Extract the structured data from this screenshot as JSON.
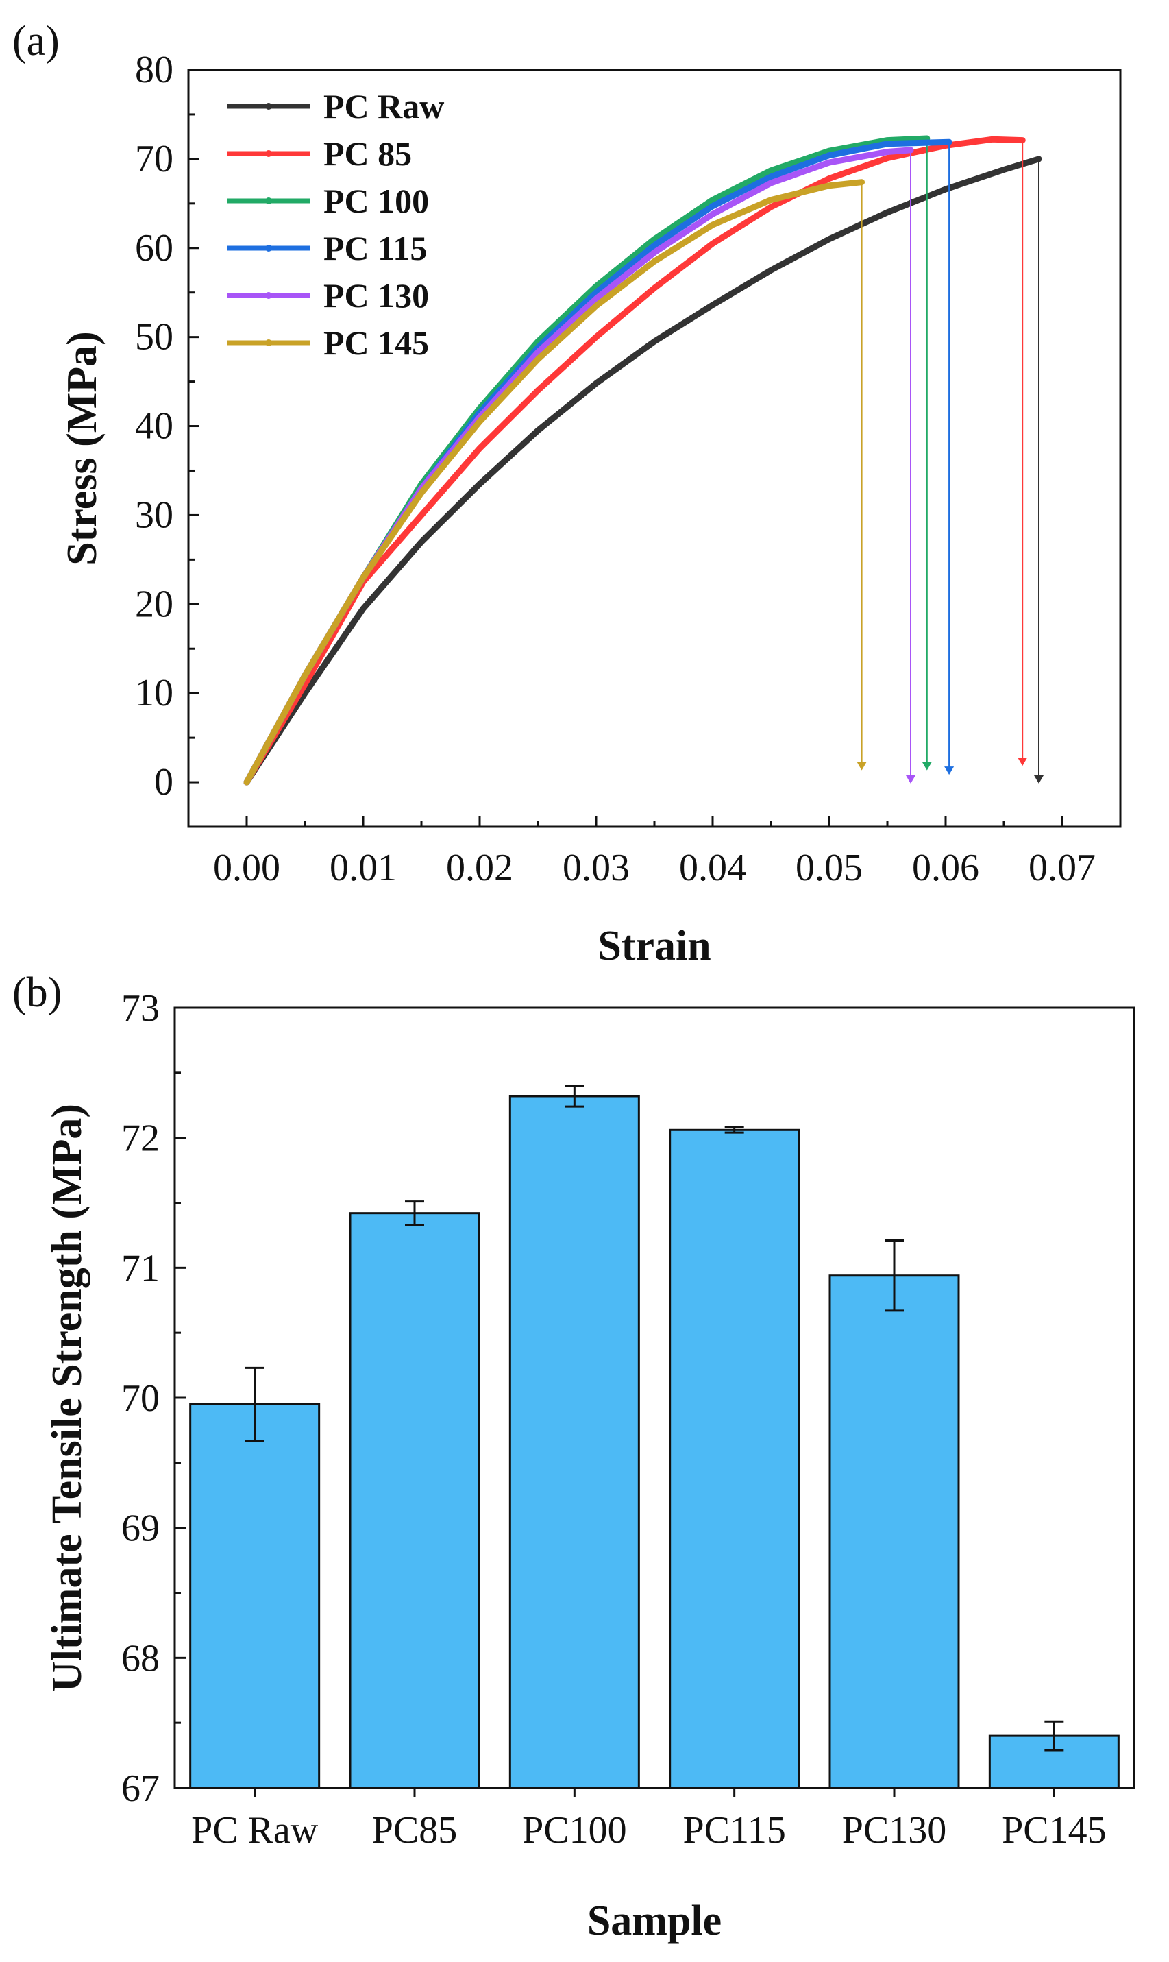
{
  "chart_data": [
    {
      "type": "line",
      "panel_label": "(a)",
      "xlabel": "Strain",
      "ylabel": "Stress (MPa)",
      "xlim": [
        -0.005,
        0.075
      ],
      "ylim": [
        -5,
        80
      ],
      "xticks": [
        "0.00",
        "0.01",
        "0.02",
        "0.03",
        "0.04",
        "0.05",
        "0.06",
        "0.07"
      ],
      "xtick_values": [
        0,
        0.01,
        0.02,
        0.03,
        0.04,
        0.05,
        0.06,
        0.07
      ],
      "yticks": [
        "0",
        "10",
        "20",
        "30",
        "40",
        "50",
        "60",
        "70",
        "80"
      ],
      "ytick_values": [
        0,
        10,
        20,
        30,
        40,
        50,
        60,
        70,
        80
      ],
      "legend_position": "top-left",
      "series": [
        {
          "name": "PC Raw",
          "color": "#333333",
          "fracture_strain": 0.068,
          "end_stress": 0,
          "points": [
            [
              0,
              0
            ],
            [
              0.005,
              10
            ],
            [
              0.01,
              19.5
            ],
            [
              0.015,
              27
            ],
            [
              0.02,
              33.5
            ],
            [
              0.025,
              39.5
            ],
            [
              0.03,
              44.8
            ],
            [
              0.035,
              49.5
            ],
            [
              0.04,
              53.6
            ],
            [
              0.045,
              57.5
            ],
            [
              0.05,
              61
            ],
            [
              0.055,
              64
            ],
            [
              0.06,
              66.6
            ],
            [
              0.065,
              68.8
            ],
            [
              0.068,
              70
            ]
          ]
        },
        {
          "name": "PC 85",
          "color": "#ff3838",
          "fracture_strain": 0.0666,
          "end_stress": 2,
          "points": [
            [
              0,
              0
            ],
            [
              0.005,
              11
            ],
            [
              0.01,
              22.5
            ],
            [
              0.015,
              30
            ],
            [
              0.02,
              37.5
            ],
            [
              0.025,
              44
            ],
            [
              0.03,
              50
            ],
            [
              0.035,
              55.5
            ],
            [
              0.04,
              60.5
            ],
            [
              0.045,
              64.6
            ],
            [
              0.05,
              67.8
            ],
            [
              0.055,
              70.1
            ],
            [
              0.06,
              71.5
            ],
            [
              0.064,
              72.2
            ],
            [
              0.0666,
              72.1
            ]
          ]
        },
        {
          "name": "PC 100",
          "color": "#22aa66",
          "fracture_strain": 0.0584,
          "end_stress": 1.5,
          "points": [
            [
              0,
              0
            ],
            [
              0.005,
              12
            ],
            [
              0.01,
              23
            ],
            [
              0.015,
              33.5
            ],
            [
              0.02,
              42
            ],
            [
              0.025,
              49.5
            ],
            [
              0.03,
              55.7
            ],
            [
              0.035,
              61
            ],
            [
              0.04,
              65.4
            ],
            [
              0.045,
              68.7
            ],
            [
              0.05,
              70.9
            ],
            [
              0.055,
              72.1
            ],
            [
              0.0584,
              72.3
            ]
          ]
        },
        {
          "name": "PC 115",
          "color": "#1e6fe0",
          "fracture_strain": 0.0603,
          "end_stress": 1,
          "points": [
            [
              0,
              0
            ],
            [
              0.005,
              12
            ],
            [
              0.01,
              23
            ],
            [
              0.015,
              33
            ],
            [
              0.02,
              41.5
            ],
            [
              0.025,
              48.8
            ],
            [
              0.03,
              55
            ],
            [
              0.035,
              60.3
            ],
            [
              0.04,
              64.7
            ],
            [
              0.045,
              68
            ],
            [
              0.05,
              70.4
            ],
            [
              0.055,
              71.7
            ],
            [
              0.0603,
              71.9
            ]
          ]
        },
        {
          "name": "PC 130",
          "color": "#a855f7",
          "fracture_strain": 0.057,
          "end_stress": 0,
          "points": [
            [
              0,
              0
            ],
            [
              0.005,
              12
            ],
            [
              0.01,
              23
            ],
            [
              0.015,
              33
            ],
            [
              0.02,
              41
            ],
            [
              0.025,
              48.3
            ],
            [
              0.03,
              54.3
            ],
            [
              0.035,
              59.5
            ],
            [
              0.04,
              63.8
            ],
            [
              0.045,
              67.3
            ],
            [
              0.05,
              69.6
            ],
            [
              0.055,
              70.8
            ],
            [
              0.057,
              71
            ]
          ]
        },
        {
          "name": "PC 145",
          "color": "#c9a227",
          "fracture_strain": 0.0528,
          "end_stress": 1.5,
          "points": [
            [
              0,
              0
            ],
            [
              0.005,
              12
            ],
            [
              0.01,
              23
            ],
            [
              0.015,
              32.5
            ],
            [
              0.02,
              40.5
            ],
            [
              0.025,
              47.5
            ],
            [
              0.03,
              53.5
            ],
            [
              0.035,
              58.5
            ],
            [
              0.04,
              62.6
            ],
            [
              0.045,
              65.4
            ],
            [
              0.05,
              67
            ],
            [
              0.0528,
              67.4
            ]
          ]
        }
      ]
    },
    {
      "type": "bar",
      "panel_label": "(b)",
      "xlabel": "Sample",
      "ylabel": "Ultimate Tensile Strength (MPa)",
      "ylim": [
        67,
        73
      ],
      "yticks": [
        "67",
        "68",
        "69",
        "70",
        "71",
        "72",
        "73"
      ],
      "ytick_values": [
        67,
        68,
        69,
        70,
        71,
        72,
        73
      ],
      "bar_color": "#4dbaf5",
      "categories": [
        "PC Raw",
        "PC85",
        "PC100",
        "PC115",
        "PC130",
        "PC145"
      ],
      "values": [
        69.95,
        71.42,
        72.32,
        72.06,
        70.94,
        67.4
      ],
      "errors": [
        0.28,
        0.09,
        0.08,
        0.02,
        0.27,
        0.11
      ]
    }
  ]
}
